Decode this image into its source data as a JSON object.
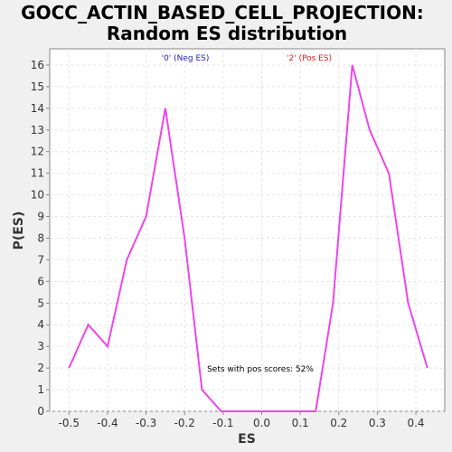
{
  "chart_data": {
    "type": "line",
    "title_line1": "GOCC_ACTIN_BASED_CELL_PROJECTION:",
    "title_line2": "Random ES distribution",
    "xlabel": "ES",
    "ylabel": "P(ES)",
    "xlim": [
      -0.55,
      0.475
    ],
    "ylim": [
      0,
      16.75
    ],
    "x_ticks": [
      -0.5,
      -0.4,
      -0.3,
      -0.2,
      -0.1,
      0.0,
      0.1,
      0.2,
      0.3,
      0.4
    ],
    "x_tick_labels": [
      "-0.5",
      "-0.4",
      "-0.3",
      "-0.2",
      "-0.1",
      "0.0",
      "0.1",
      "0.2",
      "0.3",
      "0.4"
    ],
    "y_ticks": [
      0,
      1,
      2,
      3,
      4,
      5,
      6,
      7,
      8,
      9,
      10,
      11,
      12,
      13,
      14,
      15,
      16
    ],
    "y_tick_labels": [
      "0",
      "1",
      "2",
      "3",
      "4",
      "5",
      "6",
      "7",
      "8",
      "9",
      "10",
      "11",
      "12",
      "13",
      "14",
      "15",
      "16"
    ],
    "grid": true,
    "series": [
      {
        "color": "#ee44ee",
        "x": [
          -0.5,
          -0.45,
          -0.4,
          -0.35,
          -0.3,
          -0.25,
          -0.2,
          -0.155,
          -0.105,
          -0.06,
          0.0,
          0.06,
          0.14,
          0.185,
          0.235,
          0.28,
          0.33,
          0.38,
          0.43
        ],
        "y": [
          2,
          4,
          3,
          7,
          9,
          14,
          8,
          1,
          0,
          0,
          0,
          0,
          0,
          5,
          16,
          13,
          11,
          5,
          2
        ]
      }
    ],
    "legend": [
      {
        "label": "'0' (Neg ES)",
        "color": "#2222cc"
      },
      {
        "label": "'2' (Pos ES)",
        "color": "#dd2222"
      }
    ],
    "annotation": "Sets with pos scores: 52%",
    "colors": {
      "background": "#f0f0f0",
      "plot_background": "#ffffff",
      "grid": "#e4e4e4",
      "axis": "#888888"
    }
  }
}
